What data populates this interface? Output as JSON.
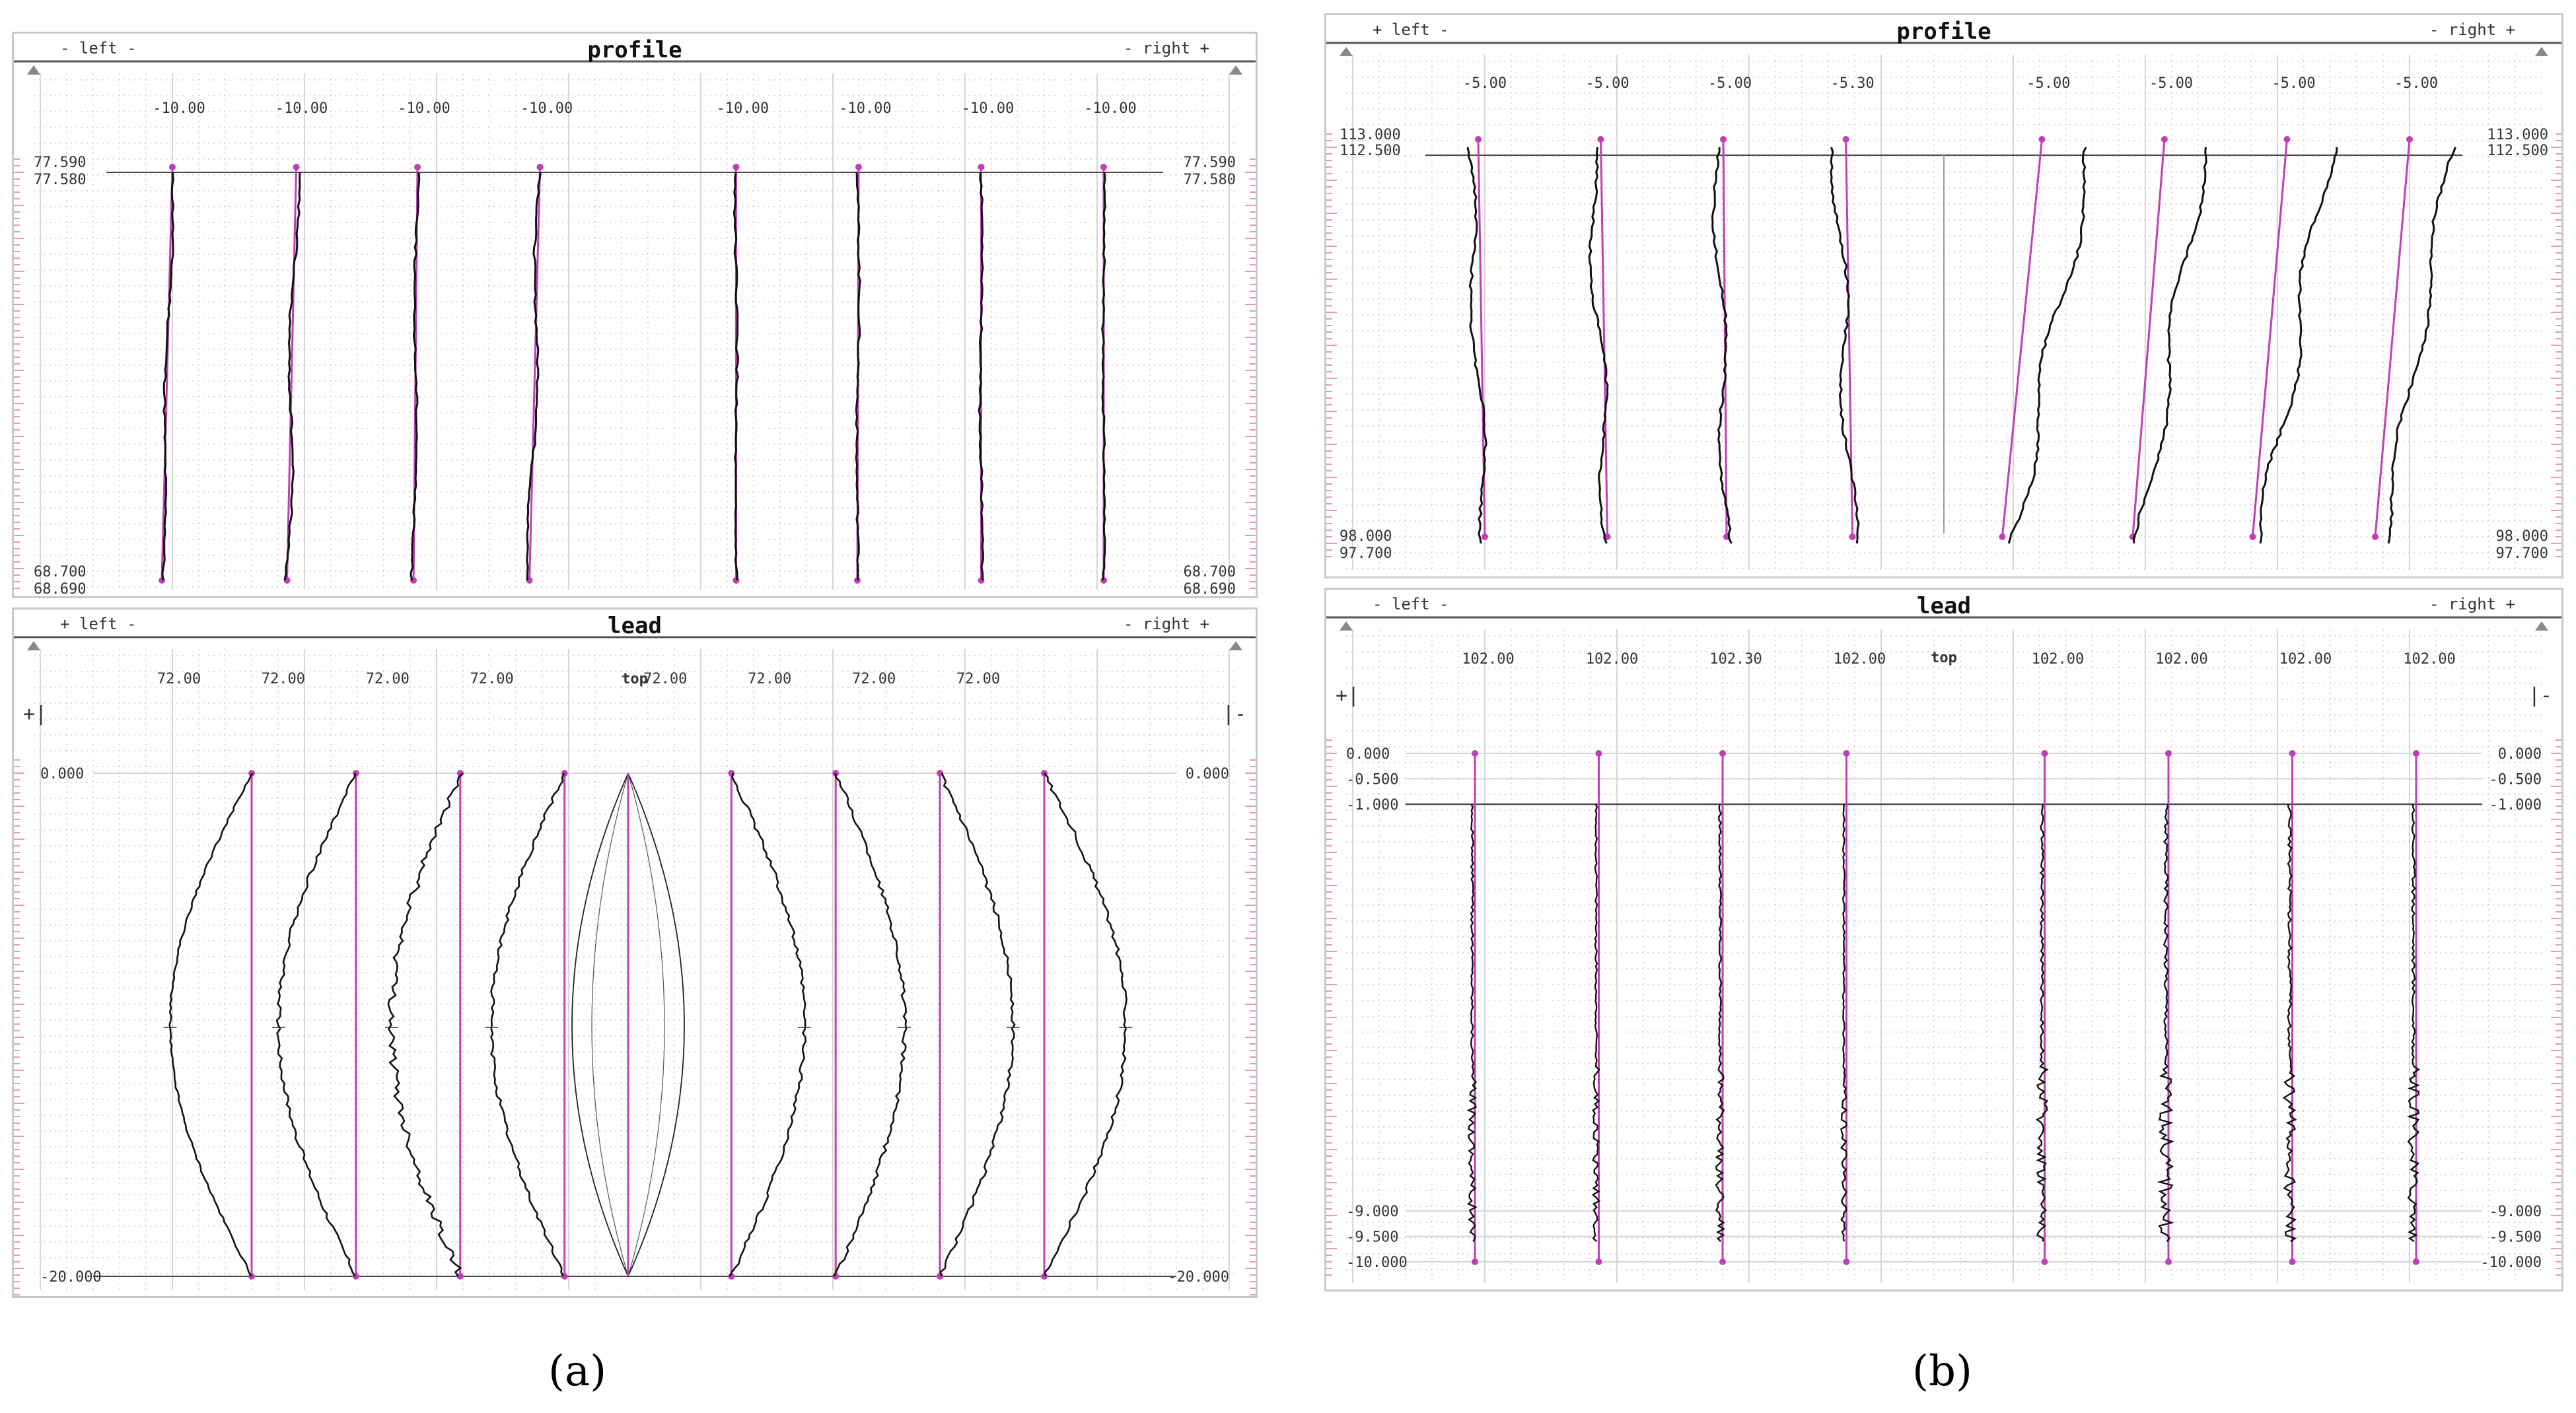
{
  "colors": {
    "grid_major": "#d6d6d6",
    "grid_minor_dot": "#e3b8c8",
    "ruler": "#d87aa0",
    "curve": "#111111",
    "nominal": "#c03fb6",
    "ref_line": "#4a4a4a"
  },
  "captions": {
    "a": "(a)",
    "b": "(b)"
  },
  "chart_data": [
    {
      "id": "a-profile",
      "type": "line",
      "title": "profile",
      "left_label": "- left -",
      "right_label": "- right +",
      "top_labels": [
        "-10.00",
        "-10.00",
        "-10.00",
        "-10.00",
        "-10.00",
        "-10.00",
        "-10.00",
        "-10.00"
      ],
      "y_labels_left": [
        "77.590",
        "77.580",
        "68.700",
        "68.690"
      ],
      "y_labels_right": [
        "77.590",
        "77.580",
        "68.700",
        "68.690"
      ],
      "ylim": [
        68.69,
        77.59
      ],
      "series": [
        {
          "top": 0.0,
          "bottom": -0.8,
          "wave": 0.15
        },
        {
          "top": 0.1,
          "bottom": -0.6,
          "wave": 0.25
        },
        {
          "top": 0.0,
          "bottom": -0.3,
          "wave": 0.15
        },
        {
          "top": 0.0,
          "bottom": -0.8,
          "wave": 0.25
        },
        {
          "top": 0.0,
          "bottom": 0.0,
          "wave": 0.08
        },
        {
          "top": 0.0,
          "bottom": -0.1,
          "wave": 0.08
        },
        {
          "top": 0.0,
          "bottom": 0.0,
          "wave": 0.1
        },
        {
          "top": 0.0,
          "bottom": 0.0,
          "wave": 0.06
        }
      ]
    },
    {
      "id": "a-lead",
      "type": "line",
      "title": "lead",
      "left_label": "+ left -",
      "right_label": "- right +",
      "center_label": "top",
      "side_mark_left": "+|",
      "side_mark_right": "|-",
      "top_labels": [
        "72.00",
        "72.00",
        "72.00",
        "72.00",
        "72.00",
        "72.00",
        "72.00",
        "72.00"
      ],
      "y_labels_left": [
        "0.000",
        "-20.000"
      ],
      "y_labels_right": [
        "0.000",
        "-20.000"
      ],
      "ylim": [
        -20.0,
        0.0
      ],
      "series": [
        {
          "crown": -1.9,
          "noise": 0.05
        },
        {
          "crown": -1.8,
          "noise": 0.1
        },
        {
          "crown": -1.6,
          "noise": 0.2
        },
        {
          "crown": -1.7,
          "noise": 0.1
        },
        {
          "crown": 1.7,
          "noise": 0.1
        },
        {
          "crown": 1.6,
          "noise": 0.1
        },
        {
          "crown": 1.7,
          "noise": 0.1
        },
        {
          "crown": 1.9,
          "noise": 0.1
        }
      ]
    },
    {
      "id": "b-profile",
      "type": "line",
      "title": "profile",
      "left_label": "+ left -",
      "right_label": "- right +",
      "top_labels": [
        "-5.00",
        "-5.00",
        "-5.00",
        "-5.30",
        "-5.00",
        "-5.00",
        "-5.00",
        "-5.00"
      ],
      "y_labels_left": [
        "113.000",
        "112.500",
        "98.000",
        "97.700"
      ],
      "y_labels_right": [
        "113.000",
        "112.500",
        "98.000",
        "97.700"
      ],
      "ylim": [
        97.7,
        113.0
      ],
      "series": [
        {
          "top": -0.3,
          "bottom": 0.2,
          "wave": 0.3
        },
        {
          "top": -0.3,
          "bottom": 0.2,
          "wave": 0.35
        },
        {
          "top": -0.2,
          "bottom": 0.1,
          "wave": 0.3
        },
        {
          "top": -0.3,
          "bottom": 0.2,
          "wave": 0.35
        },
        {
          "top": 1.5,
          "bottom": 0.2,
          "wave": 0.45
        },
        {
          "top": 1.2,
          "bottom": 0.1,
          "wave": 0.4
        },
        {
          "top": 1.3,
          "bottom": 0.3,
          "wave": 0.45
        },
        {
          "top": 1.3,
          "bottom": 0.3,
          "wave": 0.35
        }
      ]
    },
    {
      "id": "b-lead",
      "type": "line",
      "title": "lead",
      "left_label": "- left -",
      "right_label": "- right +",
      "center_label": "top",
      "side_mark_left": "+|",
      "side_mark_right": "|-",
      "top_labels": [
        "102.00",
        "102.00",
        "102.30",
        "102.00",
        "102.00",
        "102.00",
        "102.00",
        "102.00"
      ],
      "y_labels_left": [
        "0.000",
        "-0.500",
        "-1.000",
        "-9.000",
        "-9.500",
        "-10.000"
      ],
      "y_labels_right": [
        "0.000",
        "-0.500",
        "-1.000",
        "-9.000",
        "-9.500",
        "-10.000"
      ],
      "ylim": [
        -10.0,
        0.0
      ],
      "series": [
        {
          "offset": 0.0,
          "noise": 0.15
        },
        {
          "offset": 0.0,
          "noise": 0.12
        },
        {
          "offset": 0.0,
          "noise": 0.15
        },
        {
          "offset": 0.0,
          "noise": 0.1
        },
        {
          "offset": 0.0,
          "noise": 0.2
        },
        {
          "offset": 0.0,
          "noise": 0.25
        },
        {
          "offset": 0.0,
          "noise": 0.22
        },
        {
          "offset": 0.0,
          "noise": 0.2
        }
      ]
    }
  ]
}
